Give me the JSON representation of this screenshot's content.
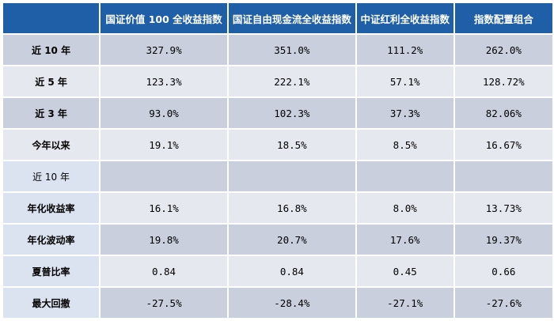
{
  "table": {
    "columns": [
      "",
      "国证价值 100 全收益指数",
      "国证自由现金流全收益指数",
      "中证红利全收益指数",
      "指数配置组合"
    ],
    "rows": [
      {
        "label": "近 10 年",
        "values": [
          "327.9%",
          "351.0%",
          "111.2%",
          "262.0%"
        ]
      },
      {
        "label": "近 5 年",
        "values": [
          "123.3%",
          "222.1%",
          "57.1%",
          "128.72%"
        ]
      },
      {
        "label": "近 3 年",
        "values": [
          "93.0%",
          "102.3%",
          "37.3%",
          "82.06%"
        ]
      },
      {
        "label": "今年以来",
        "values": [
          "19.1%",
          "18.5%",
          "8.5%",
          "16.67%"
        ]
      },
      {
        "label": "近 10 年",
        "values": [
          "",
          "",
          "",
          ""
        ]
      },
      {
        "label": "年化收益率",
        "values": [
          "16.1%",
          "16.8%",
          "8.0%",
          "13.73%"
        ]
      },
      {
        "label": "年化波动率",
        "values": [
          "19.8%",
          "20.7%",
          "17.6%",
          "19.37%"
        ]
      },
      {
        "label": "夏普比率",
        "values": [
          "0.84",
          "0.84",
          "0.45",
          "0.66"
        ]
      },
      {
        "label": "最大回撤",
        "values": [
          "-27.5%",
          "-28.4%",
          "-27.1%",
          "-27.6%"
        ]
      }
    ]
  },
  "colors": {
    "header": "#1f5fa8",
    "row_dark": "#c9cfdd",
    "row_light": "#e6e8ef",
    "label_light": "#dbe3f0"
  }
}
